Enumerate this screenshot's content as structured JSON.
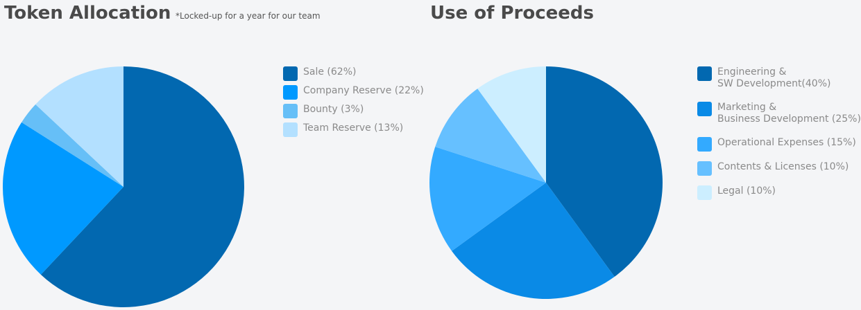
{
  "chart_data": [
    {
      "type": "pie",
      "title": "Token Allocation",
      "subtitle": "*Locked-up for a year for our team",
      "slices": [
        {
          "label": "Sale (62%)",
          "value": 62,
          "color": "#0268b0"
        },
        {
          "label": "Company Reserve (22%)",
          "value": 22,
          "color": "#0099ff"
        },
        {
          "label": "Bounty (3%)",
          "value": 3,
          "color": "#66bff7"
        },
        {
          "label": "Team Reserve (13%)",
          "value": 13,
          "color": "#b3e0ff"
        }
      ],
      "legend_position": "right"
    },
    {
      "type": "pie",
      "title": "Use of Proceeds",
      "slices": [
        {
          "label": "Engineering &\nSW Development(40%)",
          "value": 40,
          "color": "#0268b0"
        },
        {
          "label": "Marketing &\nBusiness Development (25%)",
          "value": 25,
          "color": "#0a8ae6"
        },
        {
          "label": "Operational Expenses (15%)",
          "value": 15,
          "color": "#33aaff"
        },
        {
          "label": "Contents & Licenses (10%)",
          "value": 10,
          "color": "#66c0ff"
        },
        {
          "label": "Legal (10%)",
          "value": 10,
          "color": "#cceeff"
        }
      ],
      "legend_position": "right"
    }
  ]
}
